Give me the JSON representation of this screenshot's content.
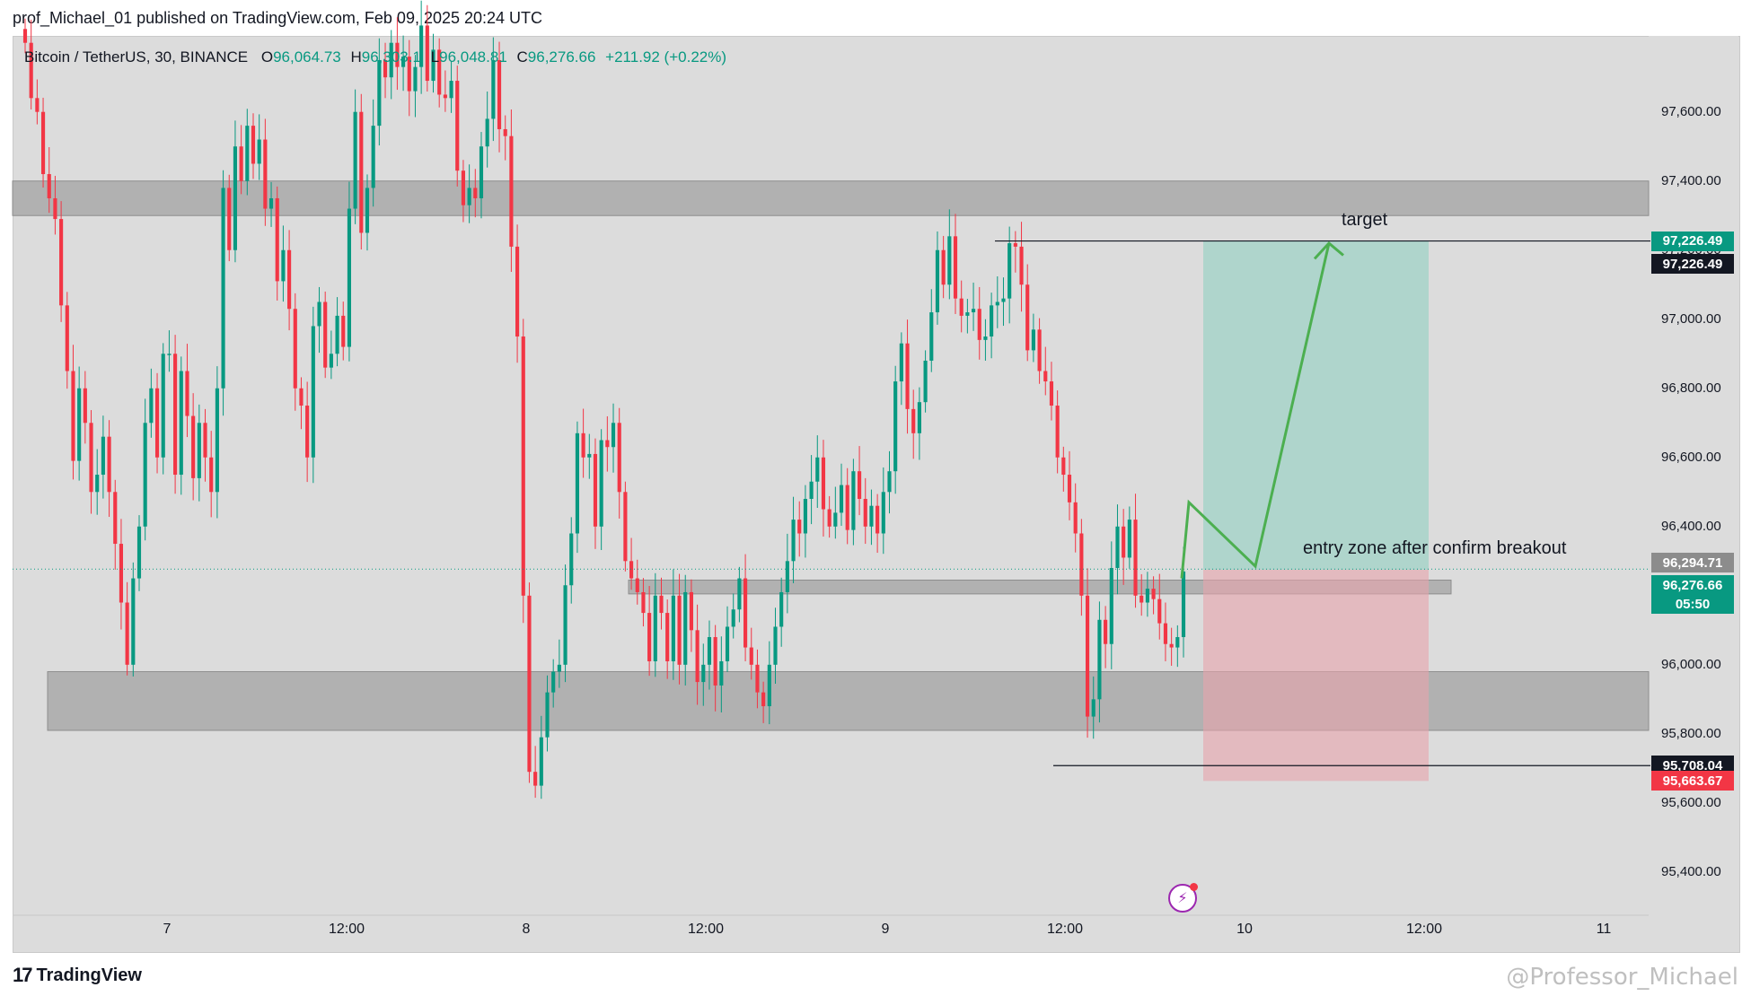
{
  "header": {
    "published": "prof_Michael_01 published on TradingView.com, Feb 09, 2025 20:24 UTC"
  },
  "legend": {
    "symbol": "Bitcoin / TetherUS, 30, BINANCE",
    "o_label": "O",
    "o_value": "96,064.73",
    "h_label": "H",
    "h_value": "96,303.1",
    "l_label": "L",
    "l_value": "96,048.81",
    "c_label": "C",
    "c_value": "96,276.66",
    "change": "+211.92 (+0.22%)"
  },
  "colors": {
    "up": "#089981",
    "down": "#f23645",
    "zone": "#a9a9a9",
    "profit": "#9bd2c4",
    "loss": "#e8a4ab",
    "arrow": "#4caf50"
  },
  "annotations": {
    "target": "target",
    "entry": "entry zone after confirm breakout"
  },
  "price_badges": [
    {
      "text": "97,226.49",
      "price": 97226.49,
      "bg": "#089981"
    },
    {
      "text": "97,226.49",
      "price": 97160,
      "bg": "#131722"
    },
    {
      "text": "96,294.71",
      "price": 96294.71,
      "bg": "#8c8c8c"
    },
    {
      "text": "96,276.66",
      "price": 96230,
      "bg": "#089981"
    },
    {
      "text": "05:50",
      "price": 96175,
      "bg": "#089981"
    },
    {
      "text": "95,708.04",
      "price": 95708.04,
      "bg": "#131722"
    },
    {
      "text": "95,663.67",
      "price": 95663.67,
      "bg": "#f23645"
    }
  ],
  "footer": {
    "brand": "TradingView",
    "watermark": "@Professor_Michael"
  },
  "chart_data": {
    "type": "candlestick",
    "title": "Bitcoin / TetherUS, 30, BINANCE",
    "yticks": [
      "97,600.00",
      "97,400.00",
      "97,200.00",
      "97,000.00",
      "96,800.00",
      "96,600.00",
      "96,400.00",
      "96,200.00",
      "96,000.00",
      "95,800.00",
      "95,600.00",
      "95,400.00"
    ],
    "ytick_values": [
      97600,
      97400,
      97200,
      97000,
      96800,
      96600,
      96400,
      96200,
      96000,
      95800,
      95600,
      95400
    ],
    "xticks": [
      "7",
      "12:00",
      "8",
      "12:00",
      "9",
      "12:00",
      "10",
      "12:00",
      "11"
    ],
    "ylim": [
      95275,
      97820
    ],
    "zones": [
      {
        "name": "resistance",
        "from": 97300,
        "to": 97400
      },
      {
        "name": "support",
        "from": 95810,
        "to": 95980
      },
      {
        "name": "breakout",
        "from": 96205,
        "to": 96245
      }
    ],
    "long_position": {
      "entry": 96275,
      "target": 97226.49,
      "stop": 95663.67
    },
    "closes": [
      97800,
      97640,
      97600,
      97420,
      97350,
      97290,
      97040,
      96850,
      96590,
      96800,
      96700,
      96500,
      96550,
      96660,
      96500,
      96350,
      96180,
      96000,
      96250,
      96400,
      96700,
      96800,
      96600,
      96900,
      96900,
      96550,
      96850,
      96720,
      96540,
      96700,
      96600,
      96500,
      96800,
      97380,
      97200,
      97500,
      97400,
      97560,
      97450,
      97520,
      97320,
      97350,
      97110,
      97200,
      97030,
      96800,
      96750,
      96600,
      96980,
      97050,
      96860,
      96900,
      97010,
      96920,
      97320,
      97600,
      97250,
      97380,
      97560,
      97750,
      97700,
      97800,
      97730,
      97760,
      97660,
      97730,
      97850,
      97690,
      97780,
      97650,
      97640,
      97690,
      97430,
      97330,
      97380,
      97350,
      97500,
      97580,
      97750,
      97550,
      97530,
      97210,
      96950,
      96200,
      95690,
      95650,
      95790,
      95920,
      95980,
      96000,
      96230,
      96380,
      96670,
      96600,
      96610,
      96400,
      96650,
      96630,
      96700,
      96500,
      96300,
      96250,
      96210,
      96150,
      96010,
      96200,
      96150,
      96010,
      96200,
      96000,
      96210,
      96100,
      95950,
      96000,
      96080,
      95940,
      96010,
      96110,
      96160,
      96250,
      96050,
      96000,
      95920,
      95880,
      96000,
      96110,
      96210,
      96300,
      96420,
      96380,
      96480,
      96530,
      96600,
      96450,
      96400,
      96440,
      96520,
      96390,
      96560,
      96480,
      96400,
      96460,
      96380,
      96500,
      96560,
      96820,
      96930,
      96740,
      96670,
      96760,
      96880,
      97020,
      97200,
      97100,
      97240,
      97060,
      97010,
      97020,
      97030,
      96940,
      96950,
      97040,
      97050,
      97060,
      97220,
      97210,
      97100,
      96910,
      96970,
      96850,
      96820,
      96750,
      96600,
      96550,
      96470,
      96380,
      96200,
      95850,
      95900,
      96130,
      96060,
      96280,
      96400,
      96310,
      96420,
      96200,
      96180,
      96220,
      96190,
      96120,
      96060,
      96050,
      96080,
      96270
    ],
    "x": [
      "7",
      "12:00",
      "8",
      "12:00",
      "9",
      "12:00",
      "10",
      "12:00",
      "11"
    ]
  }
}
